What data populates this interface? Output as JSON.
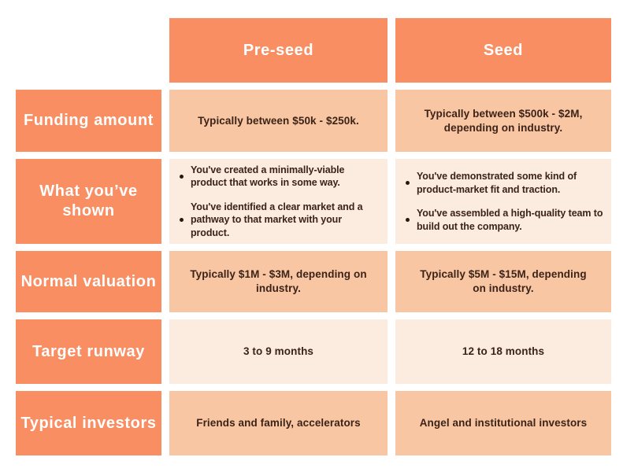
{
  "colors": {
    "accent_orange": "#F98E63",
    "cell_peach": "#F8C6A3",
    "cell_cream": "#FCEBDF",
    "text_dark": "#3C2317",
    "text_white": "#FFFFFF"
  },
  "table": {
    "column_headers": [
      "Pre-seed",
      "Seed"
    ],
    "rows": [
      {
        "label": "Funding amount",
        "cells": [
          {
            "text": "Typically between $50k - $250k."
          },
          {
            "text": "Typically between $500k - $2M,\ndepending on industry."
          }
        ]
      },
      {
        "label": "What you’ve\nshown",
        "cells": [
          {
            "bullets": [
              "You've created a minimally-viable\nproduct that works in some way.",
              "You've identified a clear market and a\npathway to that market with your\nproduct."
            ]
          },
          {
            "bullets": [
              "You've demonstrated some kind of\nproduct-market fit and traction.",
              "You've assembled a high-quality team to\nbuild out the company."
            ]
          }
        ]
      },
      {
        "label": "Normal valuation",
        "cells": [
          {
            "text": "Typically $1M - $3M, depending on\nindustry."
          },
          {
            "text": "Typically $5M - $15M, depending\non industry."
          }
        ]
      },
      {
        "label": "Target runway",
        "cells": [
          {
            "text": "3 to 9 months"
          },
          {
            "text": "12 to 18 months"
          }
        ]
      },
      {
        "label": "Typical investors",
        "cells": [
          {
            "text": "Friends and family, accelerators"
          },
          {
            "text": "Angel and institutional investors"
          }
        ]
      }
    ]
  },
  "chart_data": {
    "type": "table",
    "columns": [
      "",
      "Pre-seed",
      "Seed"
    ],
    "rows": [
      [
        "Funding amount",
        "Typically between $50k - $250k.",
        "Typically between $500k - $2M, depending on industry."
      ],
      [
        "What you've shown",
        "You've created a minimally-viable product that works in some way. | You've identified a clear market and a pathway to that market with your product.",
        "You've demonstrated some kind of product-market fit and traction. | You've assembled a high-quality team to build out the company."
      ],
      [
        "Normal valuation",
        "Typically $1M - $3M, depending on industry.",
        "Typically $5M - $15M, depending on industry."
      ],
      [
        "Target runway",
        "3 to 9 months",
        "12 to 18 months"
      ],
      [
        "Typical investors",
        "Friends and family, accelerators",
        "Angel and institutional investors"
      ]
    ]
  }
}
